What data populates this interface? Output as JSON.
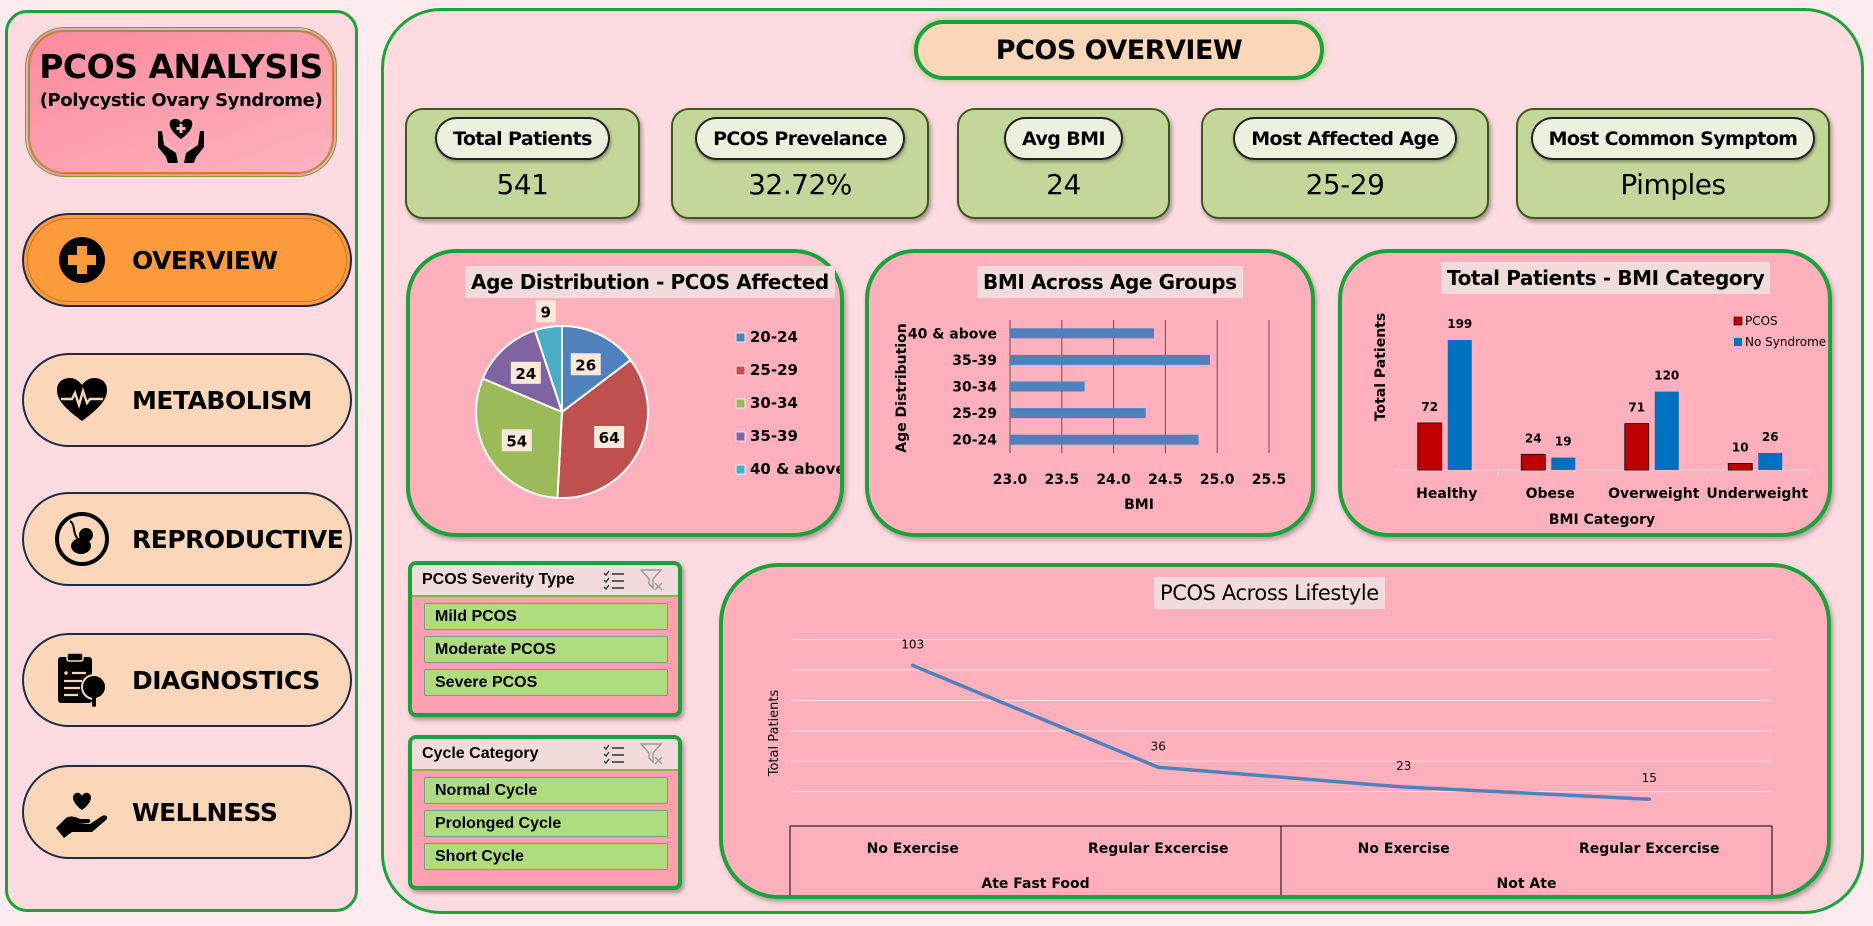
{
  "sidebar": {
    "brand_title": "PCOS ANALYSIS",
    "brand_subtitle": "(Polycystic Ovary Syndrome)",
    "brand_icon": "heart-hands-care-icon",
    "nav": [
      {
        "label": "OVERVIEW",
        "icon": "medical-cross-icon",
        "active": true
      },
      {
        "label": "METABOLISM",
        "icon": "heartbeat-icon",
        "active": false
      },
      {
        "label": "REPRODUCTIVE",
        "icon": "fetus-icon",
        "active": false
      },
      {
        "label": "DIAGNOSTICS",
        "icon": "clipboard-search-icon",
        "active": false
      },
      {
        "label": "WELLNESS",
        "icon": "heart-in-hand-icon",
        "active": false
      }
    ]
  },
  "header": {
    "title": "PCOS OVERVIEW"
  },
  "kpis": [
    {
      "label": "Total Patients",
      "value": "541"
    },
    {
      "label": "PCOS Prevelance",
      "value": "32.72%"
    },
    {
      "label": "Avg BMI",
      "value": "24"
    },
    {
      "label": "Most Affected Age",
      "value": "25-29"
    },
    {
      "label": "Most Common Symptom",
      "value": "Pimples"
    }
  ],
  "slicers": [
    {
      "title": "PCOS Severity Type",
      "items": [
        "Mild PCOS",
        "Moderate PCOS",
        "Severe PCOS"
      ]
    },
    {
      "title": "Cycle Category",
      "items": [
        "Normal Cycle",
        "Prolonged Cycle",
        "Short Cycle"
      ]
    }
  ],
  "colors": {
    "pie": [
      "#4f81bd",
      "#c0504d",
      "#9bbb59",
      "#8064a2",
      "#4bacc6"
    ],
    "bmi_bar": "#4f81bd",
    "pcos": "#c00000",
    "no_syndrome": "#0070c0",
    "line": "#4f81bd"
  },
  "chart_data": [
    {
      "type": "pie",
      "title": "Age Distribution - PCOS Affected",
      "categories": [
        "20-24",
        "25-29",
        "30-34",
        "35-39",
        "40 & above"
      ],
      "values": [
        26,
        64,
        54,
        24,
        9
      ],
      "legend": "right",
      "data_labels": true
    },
    {
      "type": "bar",
      "orientation": "horizontal",
      "title": "BMI Across Age Groups",
      "categories": [
        "20-24",
        "25-29",
        "30-34",
        "35-39",
        "40 & above"
      ],
      "values": [
        24.82,
        24.31,
        23.72,
        24.93,
        24.39
      ],
      "xlabel": "BMI",
      "ylabel": "Age Distribution",
      "xlim": [
        23.0,
        25.5
      ],
      "xticks": [
        "23.0",
        "23.5",
        "24.0",
        "24.5",
        "25.0",
        "25.5"
      ],
      "grid": "vertical"
    },
    {
      "type": "bar",
      "title": "Total Patients - BMI Category",
      "categories": [
        "Healthy",
        "Obese",
        "Overweight",
        "Underweight"
      ],
      "series": [
        {
          "name": "PCOS",
          "values": [
            72,
            24,
            71,
            10
          ]
        },
        {
          "name": "No Syndrome",
          "values": [
            199,
            19,
            120,
            26
          ]
        }
      ],
      "xlabel": "BMI Category",
      "ylabel": "Total Patients",
      "ylim": [
        0,
        220
      ],
      "legend": "top-right",
      "data_labels": true
    },
    {
      "type": "line",
      "title": "PCOS Across Lifestyle",
      "categories": [
        "No Exercise",
        "Regular Excercise",
        "No Exercise",
        "Regular Excercise"
      ],
      "groups": [
        {
          "label": "Ate Fast Food",
          "span": 2
        },
        {
          "label": "Not Ate",
          "span": 2
        }
      ],
      "values": [
        103,
        36,
        23,
        15
      ],
      "ylabel": "Total Patients",
      "ylim": [
        0,
        120
      ],
      "ystep": 20,
      "grid": "horizontal",
      "data_labels": true
    }
  ]
}
